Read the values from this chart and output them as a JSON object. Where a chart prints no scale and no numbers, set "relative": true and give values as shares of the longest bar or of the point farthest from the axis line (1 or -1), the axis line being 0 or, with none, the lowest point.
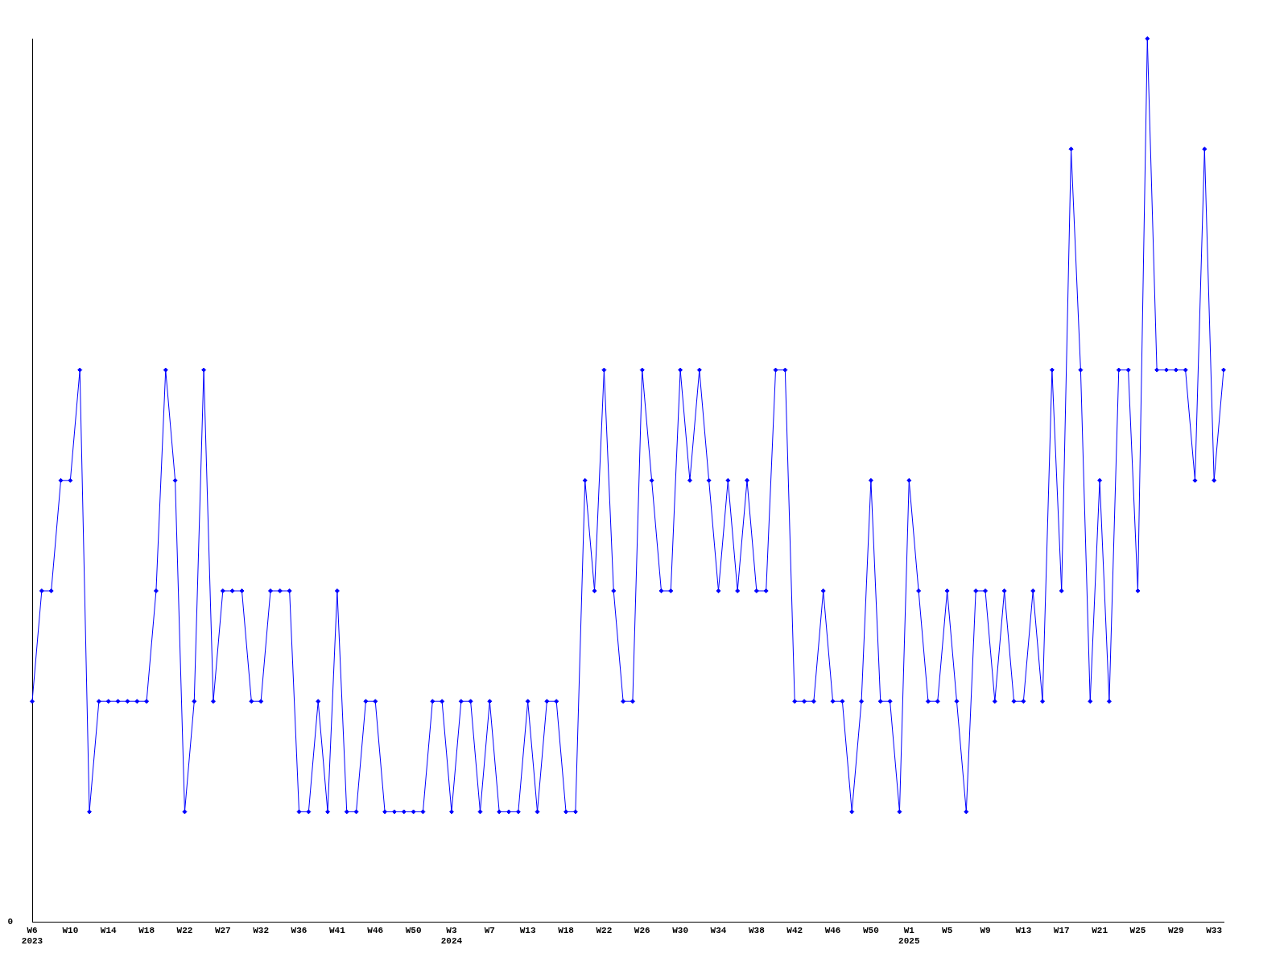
{
  "chart_data": {
    "type": "line",
    "relative": true,
    "color": "#0000ff",
    "marker": "diamond",
    "legend": false,
    "grid": false,
    "annotations": [
      "0"
    ],
    "categories": [
      "W6\n2023",
      null,
      null,
      null,
      "W10",
      null,
      null,
      null,
      "W14",
      null,
      null,
      null,
      "W18",
      null,
      null,
      null,
      "W22",
      null,
      null,
      null,
      "W27",
      null,
      null,
      null,
      "W32",
      null,
      null,
      null,
      "W36",
      null,
      null,
      null,
      "W41",
      null,
      null,
      null,
      "W46",
      null,
      null,
      null,
      "W50",
      null,
      null,
      null,
      "W3\n2024",
      null,
      null,
      null,
      "W7",
      null,
      null,
      null,
      "W13",
      null,
      null,
      null,
      "W18",
      null,
      null,
      null,
      "W22",
      null,
      null,
      null,
      "W26",
      null,
      null,
      null,
      "W30",
      null,
      null,
      null,
      "W34",
      null,
      null,
      null,
      "W38",
      null,
      null,
      null,
      "W42",
      null,
      null,
      null,
      "W46",
      null,
      null,
      null,
      "W50",
      null,
      null,
      null,
      "W1\n2025",
      null,
      null,
      null,
      "W5",
      null,
      null,
      null,
      "W9",
      null,
      null,
      null,
      "W13",
      null,
      null,
      null,
      "W17",
      null,
      null,
      null,
      "W21",
      null,
      null,
      null,
      "W25",
      null,
      null,
      null,
      "W29",
      null,
      null,
      null,
      "W33",
      null
    ],
    "values": [
      0.25,
      0.375,
      0.375,
      0.5,
      0.5,
      0.625,
      0.125,
      0.25,
      0.25,
      0.25,
      0.25,
      0.25,
      0.25,
      0.375,
      0.625,
      0.5,
      0.125,
      0.25,
      0.625,
      0.25,
      0.375,
      0.375,
      0.375,
      0.25,
      0.25,
      0.375,
      0.375,
      0.375,
      0.125,
      0.125,
      0.25,
      0.125,
      0.375,
      0.125,
      0.125,
      0.25,
      0.25,
      0.125,
      0.125,
      0.125,
      0.125,
      0.125,
      0.25,
      0.25,
      0.125,
      0.25,
      0.25,
      0.125,
      0.25,
      0.125,
      0.125,
      0.125,
      0.25,
      0.125,
      0.25,
      0.25,
      0.125,
      0.125,
      0.5,
      0.375,
      0.625,
      0.375,
      0.25,
      0.25,
      0.625,
      0.5,
      0.375,
      0.375,
      0.625,
      0.5,
      0.625,
      0.5,
      0.375,
      0.5,
      0.375,
      0.5,
      0.375,
      0.375,
      0.625,
      0.625,
      0.25,
      0.25,
      0.25,
      0.375,
      0.25,
      0.25,
      0.125,
      0.25,
      0.5,
      0.25,
      0.25,
      0.125,
      0.5,
      0.375,
      0.25,
      0.25,
      0.375,
      0.25,
      0.125,
      0.375,
      0.375,
      0.25,
      0.375,
      0.25,
      0.25,
      0.375,
      0.25,
      0.625,
      0.375,
      0.875,
      0.625,
      0.25,
      0.5,
      0.25,
      0.625,
      0.625,
      0.375,
      1,
      0.625,
      0.625,
      0.625,
      0.625,
      0.5,
      0.875,
      0.5,
      0.625
    ]
  }
}
